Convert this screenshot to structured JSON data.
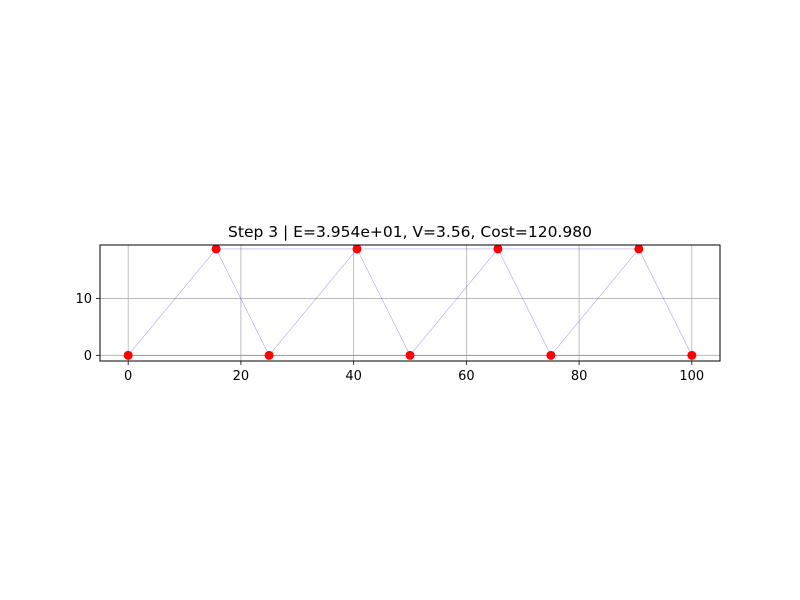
{
  "chart_data": {
    "type": "scatter",
    "title": "Step 3 | E=3.954e+01, V=3.56, Cost=120.980",
    "xlabel": "",
    "ylabel": "",
    "xlim": [
      -5,
      105
    ],
    "ylim": [
      -1,
      19.4
    ],
    "xticks": [
      0,
      20,
      40,
      60,
      80,
      100
    ],
    "xtick_labels": [
      "0",
      "20",
      "40",
      "60",
      "80",
      "100"
    ],
    "yticks": [
      0,
      10
    ],
    "ytick_labels": [
      "0",
      "10"
    ],
    "grid": true,
    "nodes": {
      "x": [
        0,
        15.6,
        25,
        40.6,
        50,
        65.6,
        75,
        90.6,
        100
      ],
      "y": [
        0,
        18.7,
        0,
        18.7,
        0,
        18.7,
        0,
        18.7,
        0
      ],
      "color": "#ff0000"
    },
    "edges": [
      [
        0,
        1
      ],
      [
        1,
        2
      ],
      [
        2,
        3
      ],
      [
        3,
        4
      ],
      [
        4,
        5
      ],
      [
        5,
        6
      ],
      [
        6,
        7
      ],
      [
        7,
        8
      ],
      [
        0,
        2
      ],
      [
        2,
        4
      ],
      [
        4,
        6
      ],
      [
        6,
        8
      ],
      [
        1,
        3
      ],
      [
        3,
        5
      ],
      [
        5,
        7
      ]
    ],
    "edge_color": "#0000ff",
    "grid_color": "#b0b0b0"
  }
}
